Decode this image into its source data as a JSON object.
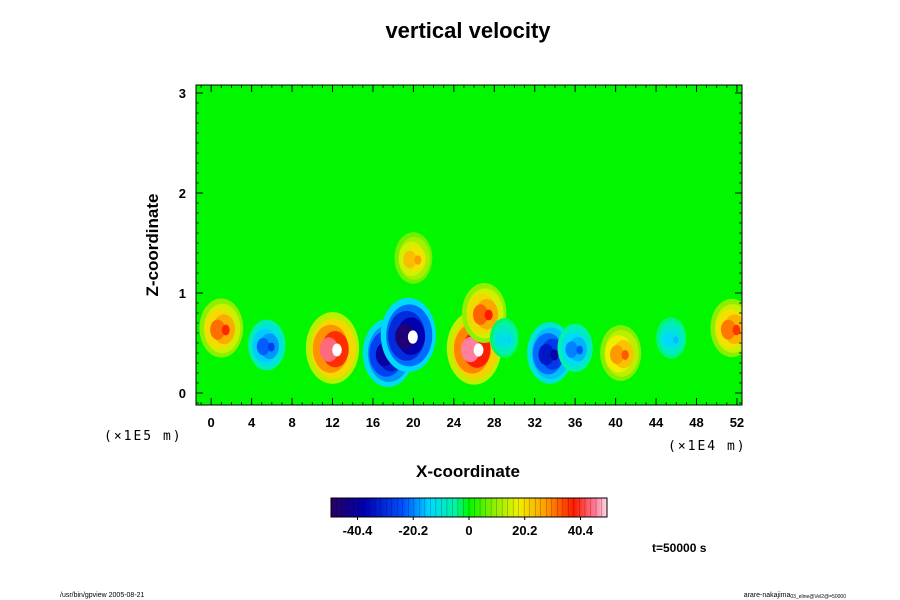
{
  "chart_data": {
    "type": "heatmap",
    "title": "vertical velocity",
    "xlabel": "X-coordinate",
    "ylabel": "Z-coordinate",
    "x_scale_label": "(×1E4 m)",
    "y_scale_label": "(×1E5 m)",
    "xlim": [
      -1.5,
      52.5
    ],
    "ylim": [
      -0.12,
      3.08
    ],
    "x_ticks": [
      0,
      4,
      8,
      12,
      16,
      20,
      24,
      28,
      32,
      36,
      40,
      44,
      48,
      52
    ],
    "y_ticks": [
      0,
      1,
      2,
      3
    ],
    "colorbar": {
      "range": [
        -50,
        50
      ],
      "ticks": [
        -40.4,
        -20.2,
        0,
        20.2,
        40.4
      ],
      "tick_labels": [
        "-40.4",
        "-20.2",
        "0",
        "20.2",
        "40.4"
      ]
    },
    "features": [
      {
        "x": 1.0,
        "z": 0.65,
        "w": 37
      },
      {
        "x": 5.5,
        "z": 0.48,
        "w": -27
      },
      {
        "x": 12.0,
        "z": 0.45,
        "w": 52
      },
      {
        "x": 17.5,
        "z": 0.4,
        "w": -48
      },
      {
        "x": 19.5,
        "z": 0.58,
        "w": -55
      },
      {
        "x": 20.0,
        "z": 1.35,
        "w": 28
      },
      {
        "x": 26.0,
        "z": 0.45,
        "w": 54
      },
      {
        "x": 27.0,
        "z": 0.8,
        "w": 38
      },
      {
        "x": 29.0,
        "z": 0.55,
        "w": -14
      },
      {
        "x": 33.5,
        "z": 0.4,
        "w": -40
      },
      {
        "x": 36.0,
        "z": 0.45,
        "w": -24
      },
      {
        "x": 40.5,
        "z": 0.4,
        "w": 33
      },
      {
        "x": 45.5,
        "z": 0.55,
        "w": -16
      },
      {
        "x": 51.5,
        "z": 0.65,
        "w": 36
      }
    ],
    "time_label": "t=50000 s"
  },
  "footer": {
    "left": "/usr/bin/gpview 2005-08-21",
    "right_main": "arare-nakajima",
    "right_sub": "03_eline@Vel2@=50000"
  },
  "colors": {
    "background_field": "#00f700",
    "frame": "#000000"
  }
}
